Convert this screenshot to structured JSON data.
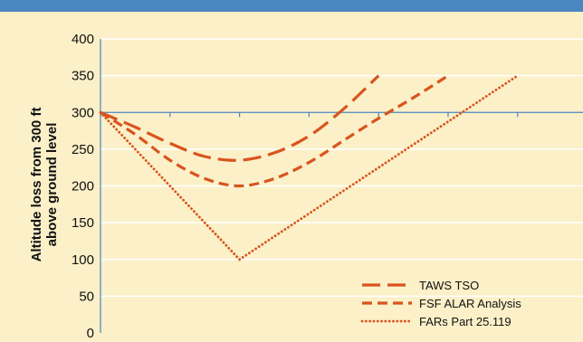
{
  "chart_data": {
    "type": "line",
    "ylabel_line1": "Altitude loss from 300 ft",
    "ylabel_line2": "above ground level",
    "ylim": [
      0,
      400
    ],
    "y_ticks": [
      0,
      50,
      100,
      150,
      200,
      250,
      300,
      350,
      400
    ],
    "x_categories": 6,
    "grid": true,
    "legend_position": "bottom-right",
    "series": [
      {
        "name": "TAWS TSO",
        "style": "long-dash",
        "color": "#d9541e",
        "points": [
          [
            0,
            300
          ],
          [
            0.5,
            280
          ],
          [
            1,
            258
          ],
          [
            1.5,
            240
          ],
          [
            2,
            235
          ],
          [
            2.5,
            245
          ],
          [
            3,
            268
          ],
          [
            3.5,
            305
          ],
          [
            4,
            350
          ]
        ]
      },
      {
        "name": "FSF ALAR Analysis",
        "style": "dash",
        "color": "#d9541e",
        "points": [
          [
            0,
            300
          ],
          [
            0.5,
            270
          ],
          [
            1,
            235
          ],
          [
            1.5,
            210
          ],
          [
            2,
            200
          ],
          [
            2.5,
            210
          ],
          [
            3,
            232
          ],
          [
            3.5,
            262
          ],
          [
            4,
            292
          ],
          [
            4.5,
            320
          ],
          [
            5,
            350
          ]
        ]
      },
      {
        "name": "FARs Part 25.119",
        "style": "dot",
        "color": "#d9541e",
        "points": [
          [
            0,
            300
          ],
          [
            2,
            100
          ],
          [
            6,
            350
          ]
        ]
      }
    ]
  }
}
